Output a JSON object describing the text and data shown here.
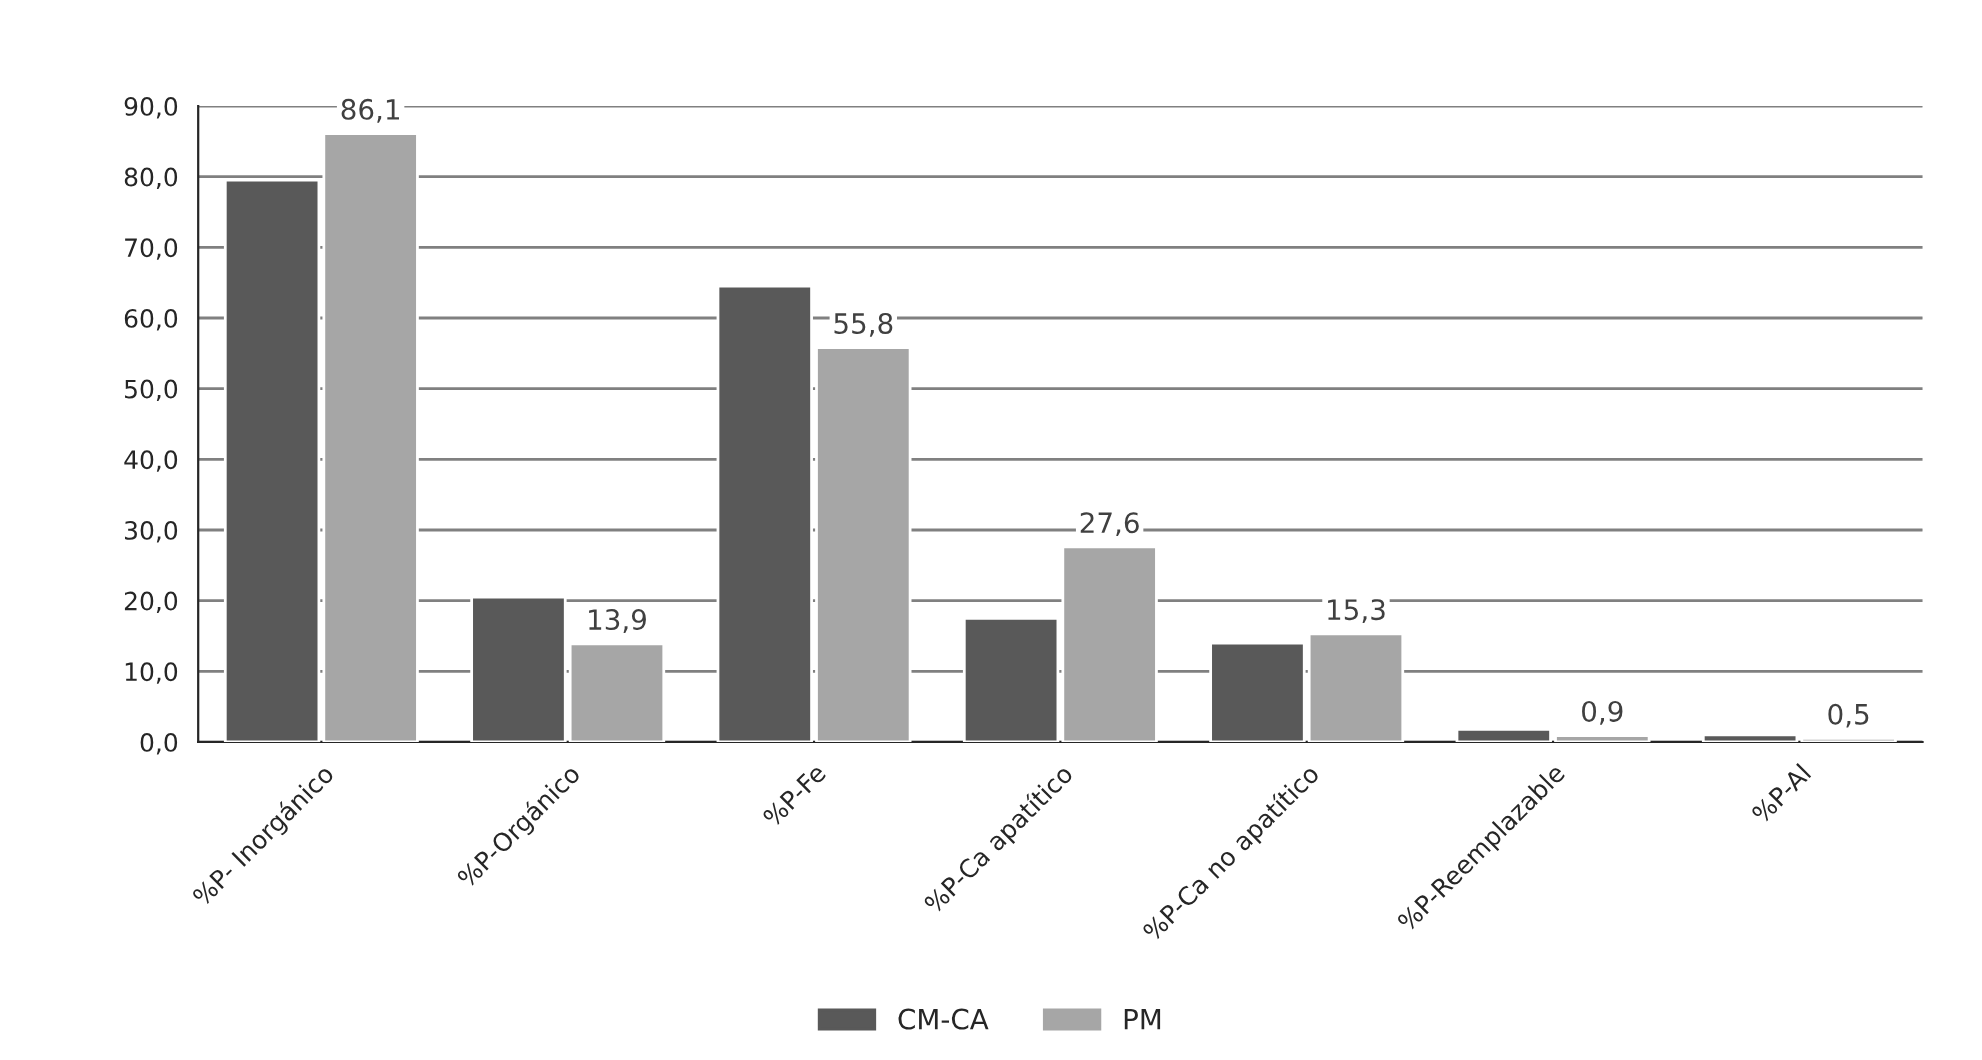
{
  "chart_data": {
    "type": "bar",
    "categories": [
      "%P- Inorgánico",
      "%P-Orgánico",
      "%P-Fe",
      "%P-Ca apatítico",
      "%P-Ca no apatítico",
      "%P-Reemplazable",
      "%P-Al"
    ],
    "series": [
      {
        "name": "CM-CA",
        "color": "#595959",
        "values": [
          79.5,
          20.5,
          64.5,
          17.5,
          14.0,
          1.8,
          1.0
        ]
      },
      {
        "name": "PM",
        "color": "#a6a6a6",
        "values": [
          86.1,
          13.9,
          55.8,
          27.6,
          15.3,
          0.9,
          0.5
        ],
        "value_labels": [
          "86,1",
          "13,9",
          "55,8",
          "27,6",
          "15,3",
          "0,9",
          "0,5"
        ]
      }
    ],
    "ylim": [
      0,
      90
    ],
    "yticks": [
      {
        "value": 0,
        "label": "0,0"
      },
      {
        "value": 10,
        "label": "10,0"
      },
      {
        "value": 20,
        "label": "20,0"
      },
      {
        "value": 30,
        "label": "30,0"
      },
      {
        "value": 40,
        "label": "40,0"
      },
      {
        "value": 50,
        "label": "50,0"
      },
      {
        "value": 60,
        "label": "60,0"
      },
      {
        "value": 70,
        "label": "70,0"
      },
      {
        "value": 80,
        "label": "80,0"
      },
      {
        "value": 90,
        "label": "90,0"
      }
    ],
    "grid": "y",
    "legend": "bottom"
  }
}
